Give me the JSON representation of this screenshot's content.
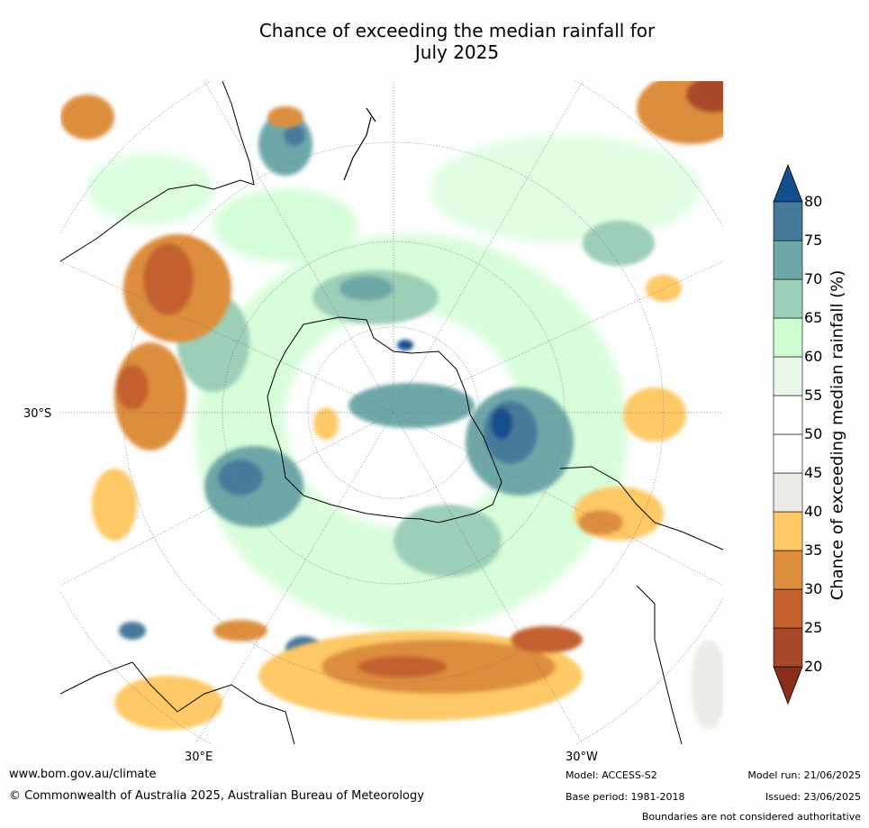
{
  "title_line1": "Chance of exceeding the median rainfall for",
  "title_line2": "July 2025",
  "lat_label": "30°S",
  "lon_labels": [
    "30°E",
    "30°W"
  ],
  "colorbar": {
    "label": "Chance of exceeding median rainfall (%)",
    "ticks": [
      "20",
      "25",
      "30",
      "35",
      "40",
      "45",
      "50",
      "55",
      "60",
      "65",
      "70",
      "75",
      "80"
    ],
    "colors": [
      "#8b2f1a",
      "#a8482a",
      "#c4612e",
      "#dd8e3d",
      "#fec966",
      "#ecebe6",
      "#ffffff",
      "#ffffff",
      "#e9f7ea",
      "#cdfdd1",
      "#9ccfb7",
      "#6ea7a8",
      "#47799b",
      "#134e8c"
    ]
  },
  "footer": {
    "url": "www.bom.gov.au/climate",
    "copyright": "© Commonwealth of Australia 2025, Australian Bureau of Meteorology",
    "model": "Model: ACCESS-S2",
    "base_period": "Base period: 1981-2018",
    "model_run": "Model run: 21/06/2025",
    "issued": "Issued: 23/06/2025",
    "disclaimer": "Boundaries are not considered authoritative"
  }
}
